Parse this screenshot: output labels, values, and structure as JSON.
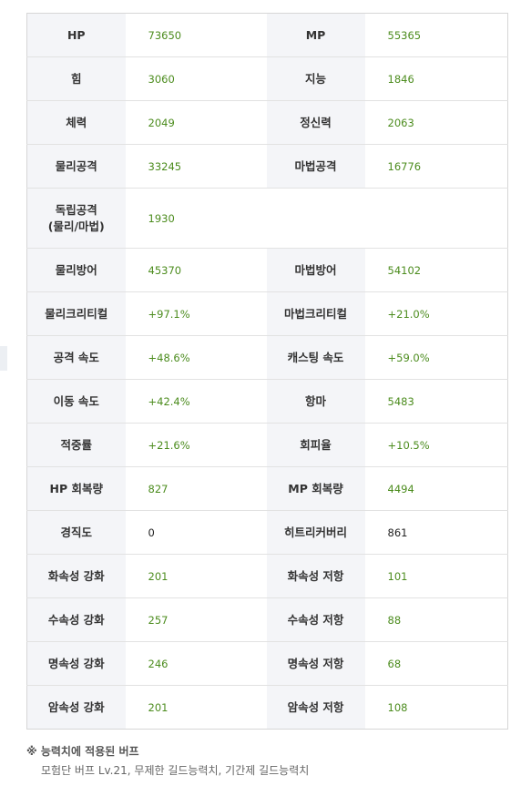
{
  "stats": {
    "rows": [
      {
        "l1": "HP",
        "v1": "73650",
        "l2": "MP",
        "v2": "55365"
      },
      {
        "l1": "힘",
        "v1": "3060",
        "l2": "지능",
        "v2": "1846"
      },
      {
        "l1": "체력",
        "v1": "2049",
        "l2": "정신력",
        "v2": "2063"
      },
      {
        "l1": "물리공격",
        "v1": "33245",
        "l2": "마법공격",
        "v2": "16776"
      },
      {
        "l1": "독립공격\n(물리/마법)",
        "v1": "1930",
        "l2": "",
        "v2": ""
      },
      {
        "l1": "물리방어",
        "v1": "45370",
        "l2": "마법방어",
        "v2": "54102"
      },
      {
        "l1": "물리크리티컬",
        "v1": "+97.1%",
        "l2": "마법크리티컬",
        "v2": "+21.0%"
      },
      {
        "l1": "공격 속도",
        "v1": "+48.6%",
        "l2": "캐스팅 속도",
        "v2": "+59.0%"
      },
      {
        "l1": "이동 속도",
        "v1": "+42.4%",
        "l2": "항마",
        "v2": "5483"
      },
      {
        "l1": "적중률",
        "v1": "+21.6%",
        "l2": "회피율",
        "v2": "+10.5%"
      },
      {
        "l1": "HP 회복량",
        "v1": "827",
        "l2": "MP 회복량",
        "v2": "4494"
      },
      {
        "l1": "경직도",
        "v1": "0",
        "l2": "히트리커버리",
        "v2": "861"
      },
      {
        "l1": "화속성 강화",
        "v1": "201",
        "l2": "화속성 저항",
        "v2": "101"
      },
      {
        "l1": "수속성 강화",
        "v1": "257",
        "l2": "수속성 저항",
        "v2": "88"
      },
      {
        "l1": "명속성 강화",
        "v1": "246",
        "l2": "명속성 저항",
        "v2": "68"
      },
      {
        "l1": "암속성 강화",
        "v1": "201",
        "l2": "암속성 저항",
        "v2": "108"
      }
    ]
  },
  "colors": {
    "value_green": "#4c8c1e",
    "value_plain": "#222222",
    "label_bg": "#f4f5f8"
  },
  "note": {
    "title": "※ 능력치에 적용된 버프",
    "body": "모험단 버프 Lv.21, 무제한 길드능력치, 기간제 길드능력치"
  }
}
